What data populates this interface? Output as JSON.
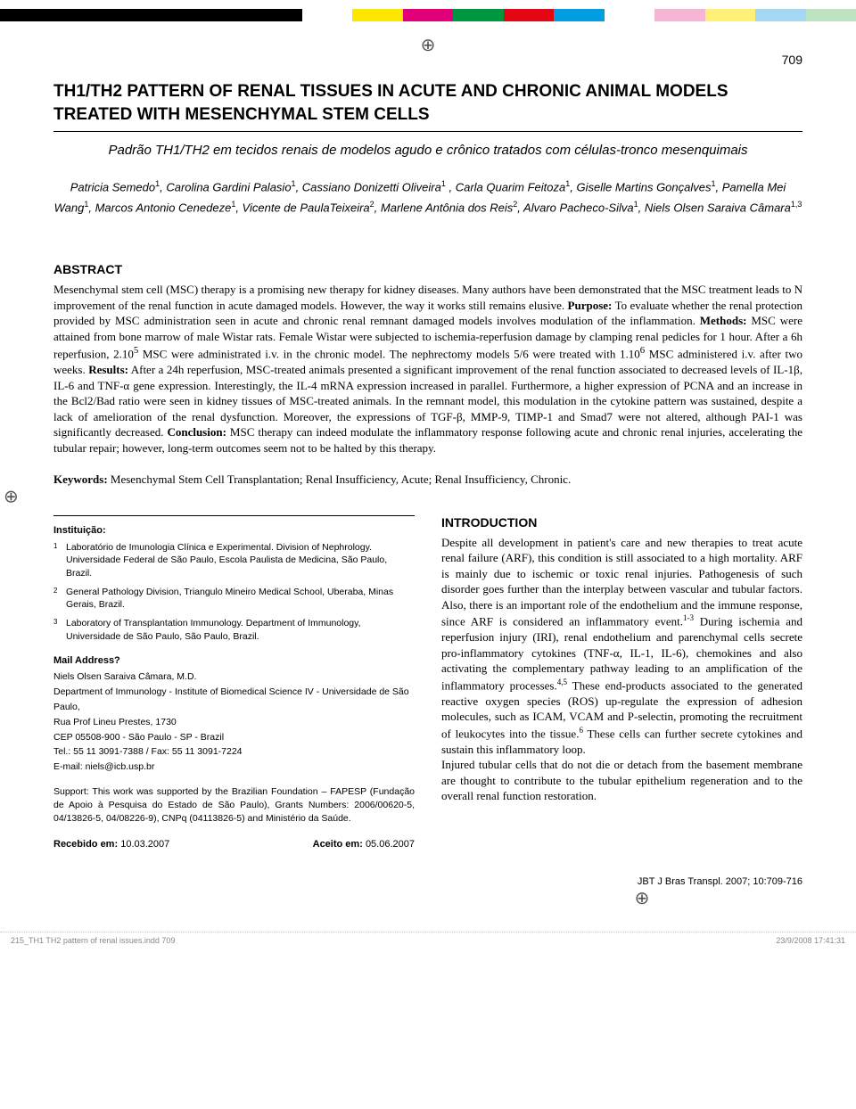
{
  "colorbar": [
    "#000000",
    "#000000",
    "#000000",
    "#000000",
    "#000000",
    "#000000",
    "#ffffff",
    "#ffe600",
    "#e2007a",
    "#00963f",
    "#e30613",
    "#009ee0",
    "#ffffff",
    "#f7b5d5",
    "#fff07a",
    "#a4d7f4",
    "#bde3c1"
  ],
  "page_number": "709",
  "title_en": "TH1/TH2 PATTERN OF RENAL TISSUES IN ACUTE AND CHRONIC ANIMAL MODELS TREATED WITH MESENCHYMAL STEM CELLS",
  "title_pt": "Padrão TH1/TH2 em tecidos renais de modelos agudo e crônico tratados com células-tronco mesenquimais",
  "authors_html": "Patricia Semedo<sup>1</sup>, Carolina Gardini Palasio<sup>1</sup>, Cassiano Donizetti Oliveira<sup>1</sup> , Carla Quarim Feitoza<sup>1</sup>, Giselle Martins Gonçalves<sup>1</sup>, Pamella Mei Wang<sup>1</sup>, Marcos Antonio Cenedeze<sup>1</sup>, Vicente de PaulaTeixeira<sup>2</sup>, Marlene Antônia dos Reis<sup>2</sup>, Alvaro Pacheco-Silva<sup>1</sup>, Niels Olsen Saraiva Câmara<sup>1,3</sup>",
  "abstract_head": "ABSTRACT",
  "abstract_body": "Mesenchymal stem cell (MSC) therapy is a promising new therapy for kidney diseases. Many authors have been demonstrated that the MSC treatment leads to N improvement of the renal function in acute damaged models. However, the way it works still remains elusive. <b>Purpose:</b> To evaluate whether the renal protection provided by MSC administration seen in acute and chronic renal remnant damaged models involves modulation of the inflammation. <b>Methods:</b> MSC were attained from bone marrow of male Wistar rats. Female Wistar were subjected to ischemia-reperfusion damage by clamping renal pedicles for 1 hour. After a 6h reperfusion, 2.10<sup>5</sup> MSC were administrated i.v. in the chronic model. The nephrectomy models 5/6 were treated with 1.10<sup>6</sup> MSC administered i.v. after two weeks. <b>Results:</b> After a 24h reperfusion, MSC-treated animals presented a significant improvement of the renal function associated to decreased levels of IL-1β, IL-6 and TNF-α gene expression. Interestingly, the IL-4 mRNA expression increased in parallel. Furthermore, a higher expression of PCNA and an increase in the Bcl2/Bad ratio were seen in kidney tissues of MSC-treated animals. In the remnant model, this modulation in the cytokine pattern was sustained, despite a lack of amelioration of the renal dysfunction. Moreover, the expressions of TGF-β, MMP-9, TIMP-1 and Smad7 were not altered, although PAI-1 was significantly decreased. <b>Conclusion:</b> MSC therapy can indeed modulate the inflammatory response following acute and chronic renal injuries, accelerating the tubular repair; however, long-term outcomes seem not to be halted by this therapy.",
  "keywords_label": "Keywords:",
  "keywords_text": "Mesenchymal Stem Cell Transplantation; Renal Insufficiency, Acute; Renal Insufficiency, Chronic.",
  "inst_head": "Instituição:",
  "inst": [
    {
      "n": "1",
      "t": "Laboratório de Imunologia Clínica e Experimental. Division of Nephrology. Universidade Federal de São Paulo, Escola Paulista de Medicina, São Paulo, Brazil."
    },
    {
      "n": "2",
      "t": "General Pathology Division, Triangulo Mineiro Medical School, Uberaba, Minas Gerais, Brazil."
    },
    {
      "n": "3",
      "t": "Laboratory of Transplantation Immunology. Department of Immunology, Universidade de São Paulo, São Paulo, Brazil."
    }
  ],
  "mail_head": "Mail Address?",
  "mail": {
    "name": "Niels Olsen Saraiva Câmara, M.D.",
    "dept": "Department of Immunology - Institute of Biomedical Science IV - Universidade de São Paulo,",
    "street": "Rua Prof Lineu Prestes, 1730",
    "cep": "CEP 05508-900 - São Paulo - SP - Brazil",
    "tel": "Tel.: 55 11 3091-7388 / Fax: 55 11 3091-7224",
    "email": "E-mail: niels@icb.usp.br"
  },
  "support": "Support: This work was supported by the Brazilian Foundation – FAPESP (Fundação de Apoio à Pesquisa do Estado de São Paulo), Grants Numbers: 2006/00620-5, 04/13826-5, 04/08226-9), CNPq (04113826-5) and Ministério da Saúde.",
  "recv_label": "Recebido em:",
  "recv_date": "10.03.2007",
  "acc_label": "Aceito em:",
  "acc_date": "05.06.2007",
  "intro_head": "INTRODUCTION",
  "intro_body": "Despite all development in patient's care and new therapies to treat acute renal failure (ARF), this condition is still associated to a high mortality. ARF is mainly due to ischemic or toxic renal injuries. Pathogenesis of such disorder goes further than the interplay between vascular and tubular factors. Also, there is an important role of the endothelium and the immune response, since ARF is considered an inflammatory event.<sup>1-3</sup> During ischemia and reperfusion injury (IRI), renal endothelium and parenchymal cells secrete pro-inflammatory cytokines (TNF-α, IL-1, IL-6), chemokines and also activating the complementary pathway leading to an amplification of the inflammatory processes.<sup>4,5</sup> These end-products associated to the generated reactive oxygen species (ROS) up-regulate the expression of adhesion molecules, such as ICAM, VCAM and P-selectin, promoting the recruitment of leukocytes into the tissue.<sup>6</sup> These cells can further secrete cytokines and sustain this inflammatory loop.<br>Injured tubular cells that do not die or detach from the basement membrane are thought to contribute to the tubular epithelium regeneration and to the overall renal function restoration.",
  "journal_ref": "JBT J Bras Transpl. 2007; 10:709-716",
  "footer_left": "215_TH1 TH2 pattern of renal issues.indd   709",
  "footer_right": "23/9/2008   17:41:31"
}
